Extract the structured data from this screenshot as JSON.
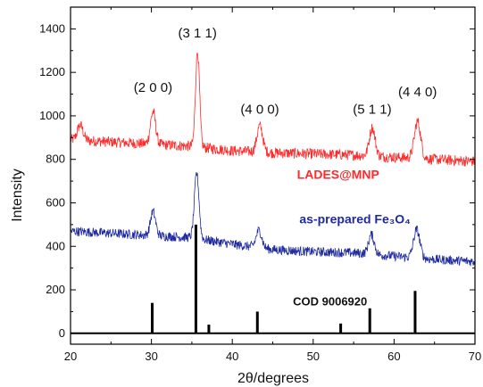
{
  "chart_data": {
    "type": "line",
    "xlabel": "2θ/degrees",
    "ylabel": "Intensity",
    "xlim": [
      20,
      70
    ],
    "ylim": [
      -50,
      1500
    ],
    "x_ticks": [
      20,
      30,
      40,
      50,
      60,
      70
    ],
    "y_ticks": [
      0,
      200,
      400,
      600,
      800,
      1000,
      1200,
      1400
    ],
    "colors": {
      "lades": "#ff2a2a",
      "fe3o4": "#1f2aa0",
      "reference": "#000000"
    },
    "series": [
      {
        "name": "LADES@MNP",
        "color": "#ff2a2a",
        "baseline": [
          [
            20,
            890
          ],
          [
            25,
            880
          ],
          [
            30,
            870
          ],
          [
            35,
            860
          ],
          [
            40,
            840
          ],
          [
            45,
            830
          ],
          [
            50,
            825
          ],
          [
            55,
            820
          ],
          [
            60,
            810
          ],
          [
            65,
            800
          ],
          [
            70,
            790
          ]
        ],
        "peaks": [
          [
            21.2,
            70,
            0.5
          ],
          [
            30.2,
            150,
            0.45
          ],
          [
            35.7,
            440,
            0.35
          ],
          [
            43.4,
            120,
            0.5
          ],
          [
            57.3,
            130,
            0.5
          ],
          [
            62.9,
            170,
            0.55
          ]
        ],
        "noise": 25
      },
      {
        "name": "as-prepared Fe₃O₄",
        "color": "#1f2aa0",
        "baseline": [
          [
            20,
            470
          ],
          [
            25,
            460
          ],
          [
            30,
            450
          ],
          [
            35,
            440
          ],
          [
            40,
            410
          ],
          [
            45,
            385
          ],
          [
            50,
            375
          ],
          [
            55,
            370
          ],
          [
            60,
            355
          ],
          [
            65,
            340
          ],
          [
            70,
            330
          ]
        ],
        "peaks": [
          [
            30.2,
            110,
            0.45
          ],
          [
            35.6,
            300,
            0.4
          ],
          [
            43.3,
            80,
            0.5
          ],
          [
            57.2,
            90,
            0.5
          ],
          [
            62.8,
            130,
            0.55
          ]
        ],
        "noise": 22
      }
    ],
    "reference": {
      "name": "COD 9006920",
      "bars": [
        [
          30.1,
          140
        ],
        [
          35.5,
          500
        ],
        [
          37.1,
          40
        ],
        [
          43.1,
          100
        ],
        [
          53.4,
          45
        ],
        [
          57.0,
          115
        ],
        [
          62.6,
          195
        ],
        [
          65.7,
          3
        ],
        [
          66.1,
          2
        ]
      ]
    },
    "annotations": [
      {
        "text": "(2 0 0)",
        "x": 30.2,
        "y": 1110
      },
      {
        "text": "(3 1 1)",
        "x": 35.7,
        "y": 1360
      },
      {
        "text": "(4 0 0)",
        "x": 43.4,
        "y": 1010
      },
      {
        "text": "(5 1 1)",
        "x": 57.3,
        "y": 1010
      },
      {
        "text": "(4 4 0)",
        "x": 62.9,
        "y": 1090
      }
    ],
    "series_labels": [
      {
        "text": "LADES@MNP",
        "x": 48.0,
        "y": 710,
        "color": "#ff2a2a"
      },
      {
        "text": "as-prepared Fe₃O₄",
        "x": 48.3,
        "y": 505,
        "color": "#1f2aa0"
      },
      {
        "text": "COD 9006920",
        "x": 47.5,
        "y": 128,
        "color": "#000000"
      }
    ]
  }
}
